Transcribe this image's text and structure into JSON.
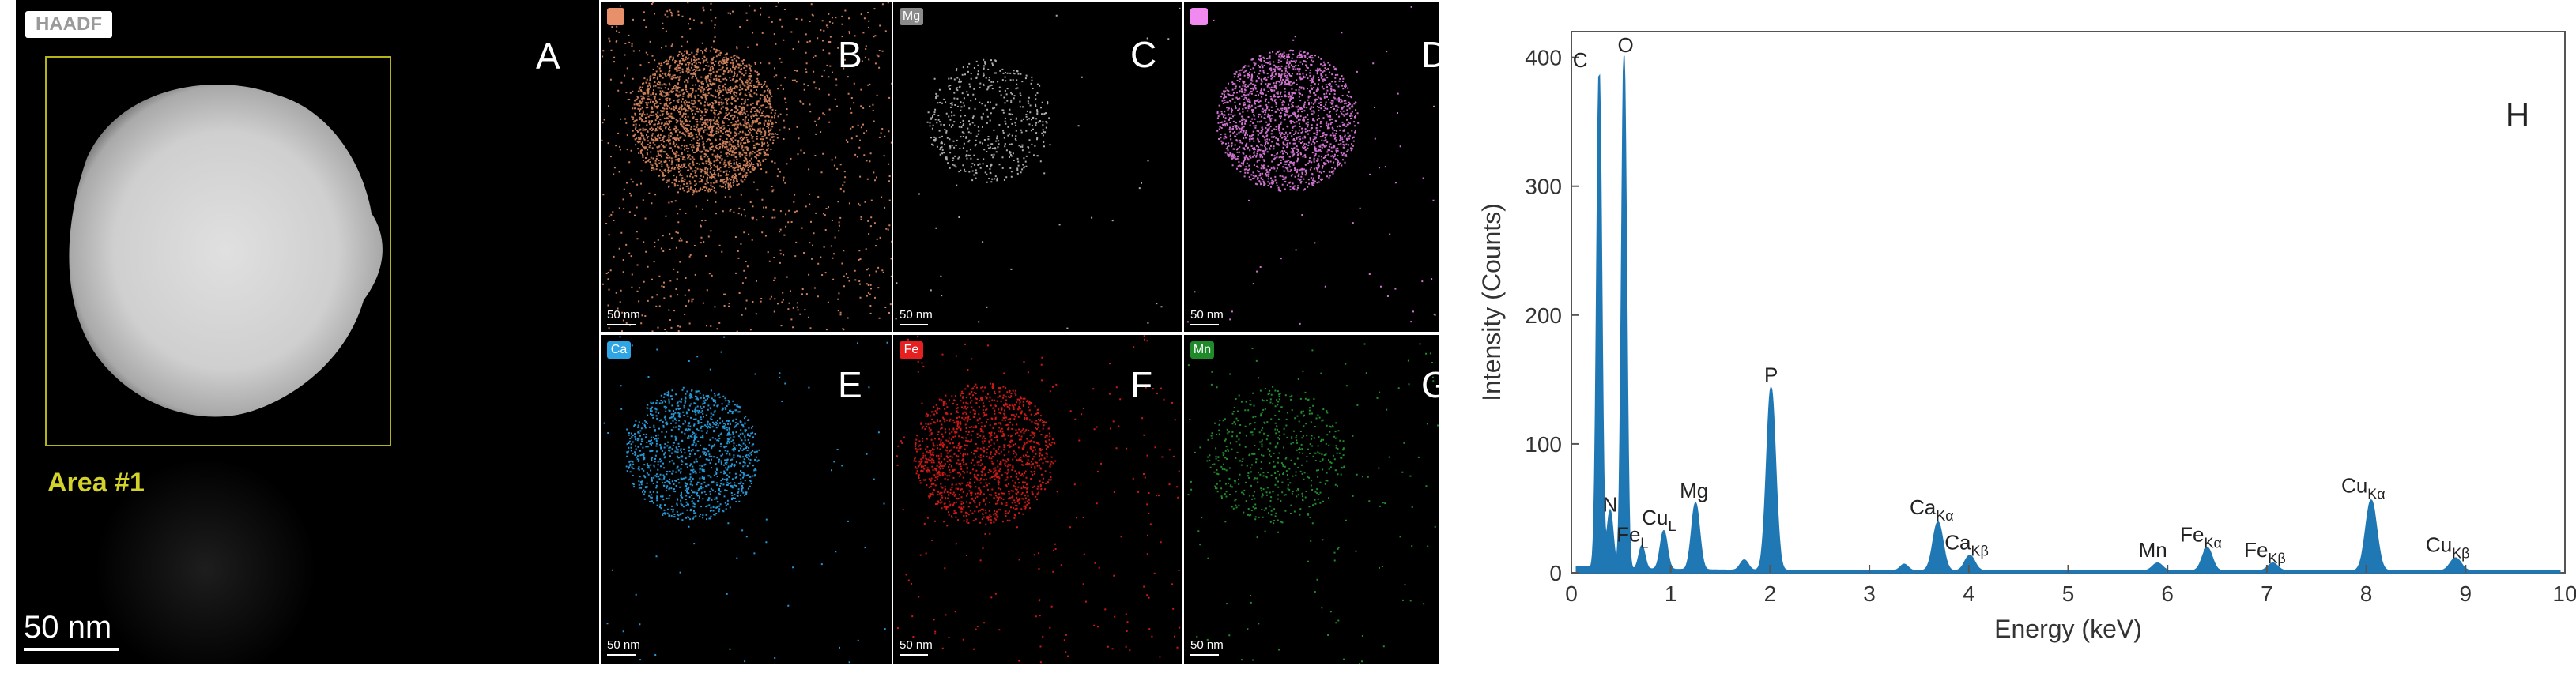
{
  "panels": {
    "A": {
      "letter": "A",
      "chip": "HAADF",
      "area_label": "Area #1",
      "scalebar": "50 nm"
    },
    "B": {
      "letter": "B",
      "chip": "",
      "chip_color": "#e8906a",
      "dot_color": "#f0956a",
      "scalebar": "50 nm"
    },
    "C": {
      "letter": "C",
      "chip": "Mg",
      "chip_color": "#8a8a8a",
      "dot_color": "#d8d8d8",
      "scalebar": "50 nm"
    },
    "D": {
      "letter": "D",
      "chip": "",
      "chip_color": "#f08af0",
      "dot_color": "#e67fe6",
      "scalebar": "50 nm"
    },
    "E": {
      "letter": "E",
      "chip": "Ca",
      "chip_color": "#2ea6e6",
      "dot_color": "#2aa8ec",
      "scalebar": "50 nm"
    },
    "F": {
      "letter": "F",
      "chip": "Fe",
      "chip_color": "#e62020",
      "dot_color": "#e61c1c",
      "scalebar": "50 nm"
    },
    "G": {
      "letter": "G",
      "chip": "Mn",
      "chip_color": "#1f8a2a",
      "dot_color": "#2bb038",
      "scalebar": "50 nm"
    }
  },
  "chart_data": {
    "type": "area",
    "panel_letter": "H",
    "xlabel": "Energy (keV)",
    "ylabel": "Intensity (Counts)",
    "xlim": [
      0,
      10
    ],
    "ylim": [
      0,
      420
    ],
    "xticks": [
      "0",
      "1",
      "2",
      "3",
      "4",
      "5",
      "6",
      "7",
      "8",
      "9",
      "10"
    ],
    "yticks": [
      "0",
      "100",
      "200",
      "300",
      "400"
    ],
    "color": "#1f77b4",
    "peaks": [
      {
        "x": 0.28,
        "y": 385,
        "w": 0.025
      },
      {
        "x": 0.39,
        "y": 45,
        "w": 0.03
      },
      {
        "x": 0.53,
        "y": 398,
        "w": 0.025
      },
      {
        "x": 0.71,
        "y": 18,
        "w": 0.03
      },
      {
        "x": 0.93,
        "y": 30,
        "w": 0.035
      },
      {
        "x": 1.25,
        "y": 52,
        "w": 0.04
      },
      {
        "x": 1.74,
        "y": 8,
        "w": 0.04
      },
      {
        "x": 2.01,
        "y": 142,
        "w": 0.045
      },
      {
        "x": 3.35,
        "y": 5,
        "w": 0.04
      },
      {
        "x": 3.69,
        "y": 38,
        "w": 0.05
      },
      {
        "x": 4.01,
        "y": 12,
        "w": 0.05
      },
      {
        "x": 5.9,
        "y": 6,
        "w": 0.05
      },
      {
        "x": 6.4,
        "y": 18,
        "w": 0.05
      },
      {
        "x": 7.06,
        "y": 6,
        "w": 0.05
      },
      {
        "x": 8.05,
        "y": 55,
        "w": 0.055
      },
      {
        "x": 8.9,
        "y": 10,
        "w": 0.055
      }
    ],
    "annotations": [
      {
        "base": "C",
        "sub": "",
        "x": 0.28,
        "y": 385
      },
      {
        "base": "O",
        "sub": "",
        "x": 0.53,
        "y": 398
      },
      {
        "base": "N",
        "sub": "",
        "x": 0.39,
        "y": 45
      },
      {
        "base": "Fe",
        "sub": "L",
        "x": 0.71,
        "y": 18
      },
      {
        "base": "Cu",
        "sub": "L",
        "x": 0.93,
        "y": 30
      },
      {
        "base": "Mg",
        "sub": "",
        "x": 1.25,
        "y": 52
      },
      {
        "base": "P",
        "sub": "",
        "x": 2.01,
        "y": 142
      },
      {
        "base": "Ca",
        "sub": "Kα",
        "x": 3.69,
        "y": 38
      },
      {
        "base": "Ca",
        "sub": "Kβ",
        "x": 4.01,
        "y": 12
      },
      {
        "base": "Mn",
        "sub": "",
        "x": 5.9,
        "y": 6
      },
      {
        "base": "Fe",
        "sub": "Kα",
        "x": 6.4,
        "y": 18
      },
      {
        "base": "Fe",
        "sub": "Kβ",
        "x": 7.06,
        "y": 6
      },
      {
        "base": "Cu",
        "sub": "Kα",
        "x": 8.05,
        "y": 55
      },
      {
        "base": "Cu",
        "sub": "Kβ",
        "x": 8.9,
        "y": 10
      }
    ]
  }
}
